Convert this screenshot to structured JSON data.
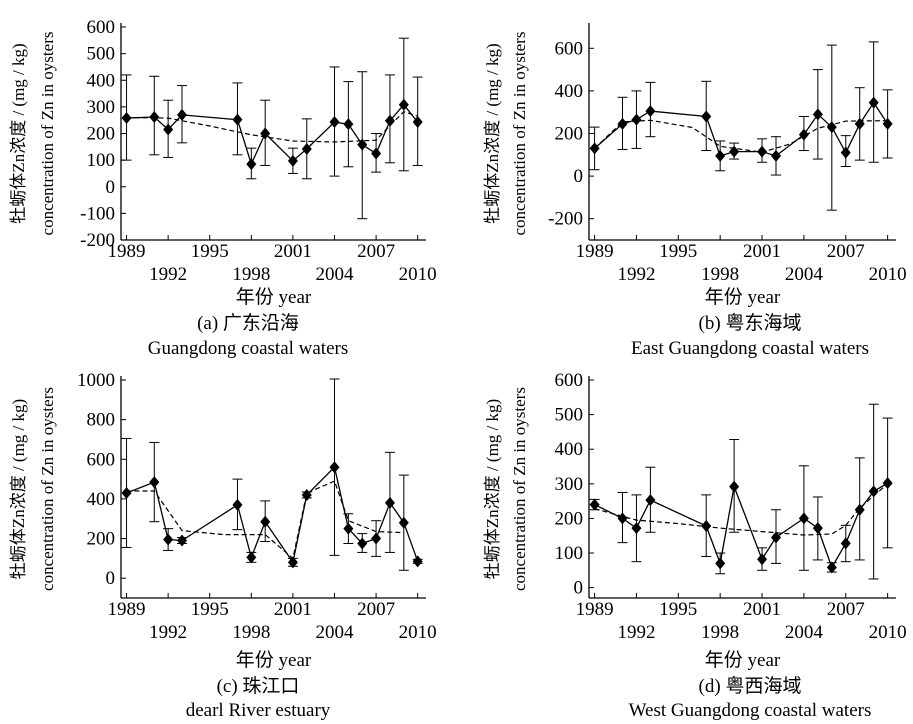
{
  "chart_data": [
    {
      "type": "line",
      "ylabel_cn": "牡蛎体Zn浓度 / (mg / kg)",
      "ylabel_en": "concentration of Zn in oysters",
      "xlabel": "年份   year",
      "caption_cn": "(a)  广东沿海",
      "caption_en": "Guangdong coastal waters",
      "ylim": [
        -200,
        600
      ],
      "yticks": [
        -200,
        -100,
        0,
        100,
        200,
        300,
        400,
        500,
        600
      ],
      "xlim": [
        1988.6,
        2010.6
      ],
      "xticks": [
        1989,
        1992,
        1995,
        1998,
        2001,
        2004,
        2007,
        2010
      ],
      "x": [
        1989,
        1991,
        1992,
        1993,
        1997,
        1998,
        1999,
        2001,
        2002,
        2004,
        2005,
        2006,
        2007,
        2008,
        2009,
        2010
      ],
      "series": [
        {
          "values": [
            258,
            262,
            215,
            270,
            252,
            85,
            200,
            97,
            142,
            243,
            235,
            158,
            125,
            248,
            308,
            243
          ],
          "err_low": [
            100,
            120,
            110,
            165,
            120,
            30,
            80,
            50,
            30,
            40,
            75,
            -120,
            55,
            90,
            60,
            80
          ],
          "err_high": [
            420,
            415,
            325,
            380,
            390,
            145,
            325,
            145,
            255,
            450,
            395,
            432,
            200,
            420,
            558,
            412
          ]
        }
      ],
      "trend": [
        {
          "x": 1989,
          "y": 260
        },
        {
          "x": 1992,
          "y": 258
        },
        {
          "x": 1995,
          "y": 228
        },
        {
          "x": 1998,
          "y": 195
        },
        {
          "x": 2001,
          "y": 172
        },
        {
          "x": 2004,
          "y": 168
        },
        {
          "x": 2007,
          "y": 175
        },
        {
          "x": 2008,
          "y": 230
        },
        {
          "x": 2009,
          "y": 282
        },
        {
          "x": 2010,
          "y": 265
        }
      ]
    },
    {
      "type": "line",
      "ylabel_cn": "牡蛎体Zn浓度 / (mg / kg)",
      "ylabel_en": "concentration of Zn in oysters",
      "xlabel": "年份   year",
      "caption_cn": "(b)  粤东海域",
      "caption_en": "East Guangdong coastal waters",
      "ylim": [
        -300,
        700
      ],
      "yticks": [
        -200,
        0,
        200,
        400,
        600
      ],
      "xlim": [
        1988.6,
        2010.6
      ],
      "xticks": [
        1989,
        1992,
        1995,
        1998,
        2001,
        2004,
        2007,
        2010
      ],
      "x": [
        1989,
        1991,
        1992,
        1993,
        1997,
        1998,
        1999,
        2001,
        2002,
        2004,
        2005,
        2006,
        2007,
        2008,
        2009,
        2010
      ],
      "series": [
        {
          "values": [
            130,
            245,
            265,
            305,
            280,
            95,
            115,
            115,
            95,
            195,
            290,
            230,
            110,
            245,
            345,
            245
          ],
          "err_low": [
            30,
            125,
            130,
            185,
            120,
            25,
            80,
            65,
            5,
            120,
            80,
            -160,
            45,
            75,
            65,
            85
          ],
          "err_high": [
            230,
            370,
            400,
            440,
            445,
            165,
            155,
            175,
            185,
            280,
            500,
            615,
            190,
            415,
            630,
            405
          ]
        }
      ],
      "trend": [
        {
          "x": 1989,
          "y": 130
        },
        {
          "x": 1991,
          "y": 255
        },
        {
          "x": 1993,
          "y": 262
        },
        {
          "x": 1996,
          "y": 228
        },
        {
          "x": 1998,
          "y": 140
        },
        {
          "x": 2001,
          "y": 112
        },
        {
          "x": 2003,
          "y": 150
        },
        {
          "x": 2005,
          "y": 225
        },
        {
          "x": 2007,
          "y": 258
        },
        {
          "x": 2010,
          "y": 260
        }
      ]
    },
    {
      "type": "line",
      "ylabel_cn": "牡蛎体Zn浓度 / (mg / kg)",
      "ylabel_en": "concentration of Zn in oysters",
      "xlabel": "年份   year",
      "caption_cn": "(c)  珠江口",
      "caption_en": "dearl River estuary",
      "ylim": [
        -100,
        1000
      ],
      "yticks": [
        0,
        200,
        400,
        600,
        800,
        1000
      ],
      "xlim": [
        1988.6,
        2010.6
      ],
      "xticks": [
        1989,
        1992,
        1995,
        1998,
        2001,
        2004,
        2007,
        2010
      ],
      "x": [
        1989,
        1991,
        1992,
        1993,
        1997,
        1998,
        1999,
        2001,
        2002,
        2004,
        2005,
        2006,
        2007,
        2008,
        2009,
        2010
      ],
      "series": [
        {
          "values": [
            430,
            485,
            195,
            190,
            370,
            105,
            285,
            80,
            420,
            560,
            250,
            175,
            200,
            380,
            280,
            85
          ],
          "err_low": [
            155,
            285,
            140,
            175,
            245,
            80,
            185,
            60,
            405,
            115,
            175,
            130,
            110,
            130,
            40,
            75
          ],
          "err_high": [
            705,
            685,
            250,
            205,
            500,
            130,
            390,
            100,
            435,
            1005,
            325,
            225,
            290,
            635,
            520,
            95
          ]
        }
      ],
      "trend": [
        {
          "x": 1989,
          "y": 440
        },
        {
          "x": 1991,
          "y": 440
        },
        {
          "x": 1993,
          "y": 240
        },
        {
          "x": 1996,
          "y": 220
        },
        {
          "x": 1999,
          "y": 220
        },
        {
          "x": 2001,
          "y": 100
        },
        {
          "x": 2002,
          "y": 430
        },
        {
          "x": 2004,
          "y": 490
        },
        {
          "x": 2005,
          "y": 290
        },
        {
          "x": 2007,
          "y": 235
        },
        {
          "x": 2009,
          "y": 230
        }
      ]
    },
    {
      "type": "line",
      "ylabel_cn": "牡蛎体Zn浓度 / (mg / kg)",
      "ylabel_en": "concentration of Zn in oysters",
      "xlabel": "年份   year",
      "caption_cn": "(d)  粤西海域",
      "caption_en": "West Guangdong coastal waters",
      "ylim": [
        -30,
        600
      ],
      "yticks": [
        0,
        100,
        200,
        300,
        400,
        500,
        600
      ],
      "xlim": [
        1988.6,
        2010.6
      ],
      "xticks": [
        1989,
        1992,
        1995,
        1998,
        2001,
        2004,
        2007,
        2010
      ],
      "x": [
        1989,
        1991,
        1992,
        1993,
        1997,
        1998,
        1999,
        2001,
        2002,
        2004,
        2005,
        2006,
        2007,
        2008,
        2009,
        2010
      ],
      "series": [
        {
          "values": [
            240,
            200,
            172,
            253,
            178,
            70,
            292,
            82,
            145,
            200,
            172,
            58,
            128,
            225,
            278,
            302
          ],
          "err_low": [
            225,
            130,
            75,
            160,
            90,
            40,
            160,
            50,
            70,
            50,
            80,
            45,
            75,
            80,
            25,
            115
          ],
          "err_high": [
            255,
            275,
            268,
            348,
            268,
            100,
            428,
            115,
            225,
            352,
            262,
            72,
            180,
            375,
            530,
            490
          ]
        }
      ],
      "trend": [
        {
          "x": 1989,
          "y": 228
        },
        {
          "x": 1992,
          "y": 195
        },
        {
          "x": 1995,
          "y": 185
        },
        {
          "x": 1998,
          "y": 172
        },
        {
          "x": 2001,
          "y": 162
        },
        {
          "x": 2004,
          "y": 152
        },
        {
          "x": 2006,
          "y": 155
        },
        {
          "x": 2007,
          "y": 180
        },
        {
          "x": 2008,
          "y": 230
        },
        {
          "x": 2010,
          "y": 300
        }
      ]
    }
  ]
}
